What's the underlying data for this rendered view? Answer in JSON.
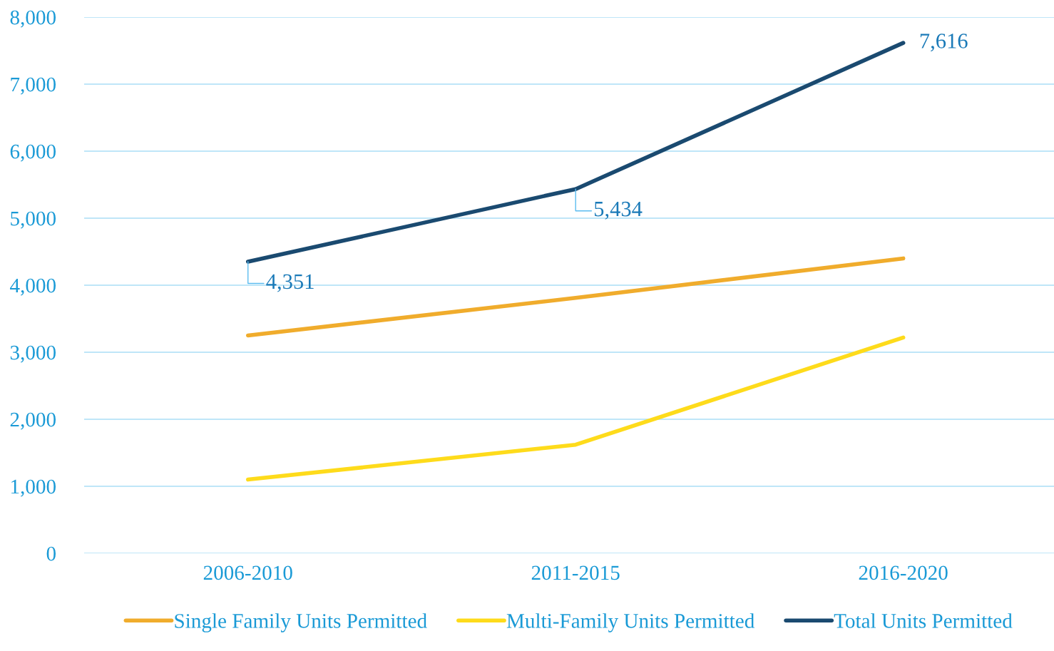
{
  "chart_data": {
    "type": "line",
    "categories": [
      "2006-2010",
      "2011-2015",
      "2016-2020"
    ],
    "series": [
      {
        "name": "Single Family Units Permitted",
        "color": "#f0ac2c",
        "values": [
          3250,
          3810,
          4400
        ]
      },
      {
        "name": "Multi-Family Units Permitted",
        "color": "#fedb1b",
        "values": [
          1100,
          1620,
          3220
        ]
      },
      {
        "name": "Total Units Permitted",
        "color": "#1a4a70",
        "values": [
          4351,
          5434,
          7616
        ],
        "value_labels": [
          "4,351",
          "5,434",
          "7,616"
        ]
      }
    ],
    "ylim": [
      0,
      8000
    ],
    "yticks": [
      {
        "value": 0,
        "label": "0"
      },
      {
        "value": 1000,
        "label": "1,000"
      },
      {
        "value": 2000,
        "label": "2,000"
      },
      {
        "value": 3000,
        "label": "3,000"
      },
      {
        "value": 4000,
        "label": "4,000"
      },
      {
        "value": 5000,
        "label": "5,000"
      },
      {
        "value": 6000,
        "label": "6,000"
      },
      {
        "value": 7000,
        "label": "7,000"
      },
      {
        "value": 8000,
        "label": "8,000"
      }
    ],
    "grid": "y",
    "legend": "bottom",
    "marker": "none",
    "line_style": "solid"
  }
}
